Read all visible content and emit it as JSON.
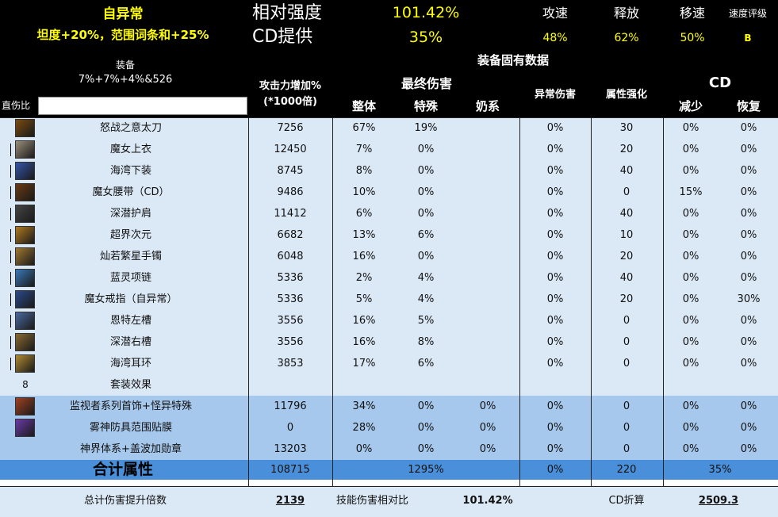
{
  "header": {
    "title_left": "自异常",
    "subtitle_left": "坦度+20%，范围词条和+25%",
    "relative_strength_label": "相对强度",
    "relative_strength_value": "101.42%",
    "cd_label": "CD提供",
    "cd_value": "35%",
    "speed_headers": [
      "攻速",
      "释放",
      "移速",
      "速度评级"
    ],
    "speed_values": [
      "48%",
      "62%",
      "50%",
      "B"
    ],
    "equip_label": "装备",
    "equip_value": "7%+7%+4%&526",
    "fixed_data_label": "装备固有数据",
    "direct_ratio_label": "直伤比",
    "direct_ratio_input": "",
    "atk_label_1": "攻击力增加%",
    "atk_label_2": "(*1000倍)",
    "final_dmg_label": "最终伤害",
    "sub_total": "整体",
    "sub_special": "特殊",
    "sub_milk": "奶系",
    "abnormal_label": "异常伤害",
    "element_label": "属性强化",
    "cd_group_label": "CD",
    "cd_reduce": "减少",
    "cd_recover": "恢复"
  },
  "items": [
    {
      "name": "怒战之意太刀",
      "atk": "7256",
      "total": "67%",
      "special": "19%",
      "milk": "",
      "abnormal": "0%",
      "element": "30",
      "cd_reduce": "0%",
      "cd_recover": "0%"
    },
    {
      "name": "魔女上衣",
      "atk": "12450",
      "total": "7%",
      "special": "0%",
      "milk": "",
      "abnormal": "0%",
      "element": "20",
      "cd_reduce": "0%",
      "cd_recover": "0%"
    },
    {
      "name": "海湾下装",
      "atk": "8745",
      "total": "8%",
      "special": "0%",
      "milk": "",
      "abnormal": "0%",
      "element": "40",
      "cd_reduce": "0%",
      "cd_recover": "0%"
    },
    {
      "name": "魔女腰带（CD）",
      "atk": "9486",
      "total": "10%",
      "special": "0%",
      "milk": "",
      "abnormal": "0%",
      "element": "0",
      "cd_reduce": "15%",
      "cd_recover": "0%"
    },
    {
      "name": "深潜护肩",
      "atk": "11412",
      "total": "6%",
      "special": "0%",
      "milk": "",
      "abnormal": "0%",
      "element": "40",
      "cd_reduce": "0%",
      "cd_recover": "0%"
    },
    {
      "name": "超界次元",
      "atk": "6682",
      "total": "13%",
      "special": "6%",
      "milk": "",
      "abnormal": "0%",
      "element": "10",
      "cd_reduce": "0%",
      "cd_recover": "0%"
    },
    {
      "name": "灿若繁星手镯",
      "atk": "6048",
      "total": "16%",
      "special": "0%",
      "milk": "",
      "abnormal": "0%",
      "element": "20",
      "cd_reduce": "0%",
      "cd_recover": "0%"
    },
    {
      "name": "蓝灵项链",
      "atk": "5336",
      "total": "2%",
      "special": "4%",
      "milk": "",
      "abnormal": "0%",
      "element": "40",
      "cd_reduce": "0%",
      "cd_recover": "0%"
    },
    {
      "name": "魔女戒指（自异常）",
      "atk": "5336",
      "total": "5%",
      "special": "4%",
      "milk": "",
      "abnormal": "0%",
      "element": "20",
      "cd_reduce": "0%",
      "cd_recover": "30%"
    },
    {
      "name": "恩特左槽",
      "atk": "3556",
      "total": "16%",
      "special": "5%",
      "milk": "",
      "abnormal": "0%",
      "element": "0",
      "cd_reduce": "0%",
      "cd_recover": "0%"
    },
    {
      "name": "深潜右槽",
      "atk": "3556",
      "total": "16%",
      "special": "8%",
      "milk": "",
      "abnormal": "0%",
      "element": "0",
      "cd_reduce": "0%",
      "cd_recover": "0%"
    },
    {
      "name": "海湾耳环",
      "atk": "3853",
      "total": "17%",
      "special": "6%",
      "milk": "",
      "abnormal": "0%",
      "element": "0",
      "cd_reduce": "0%",
      "cd_recover": "0%"
    }
  ],
  "set_effect": {
    "count": "8",
    "label": "套装效果"
  },
  "extras": [
    {
      "name": "监视者系列首饰+怪异特殊",
      "atk": "11796",
      "total": "34%",
      "special": "0%",
      "milk": "0%",
      "abnormal": "0%",
      "element": "0",
      "cd_reduce": "0%",
      "cd_recover": "0%"
    },
    {
      "name": "雾神防具范围贴膜",
      "atk": "0",
      "total": "28%",
      "special": "0%",
      "milk": "0%",
      "abnormal": "0%",
      "element": "0",
      "cd_reduce": "0%",
      "cd_recover": "0%"
    },
    {
      "name": "神界体系+盖波加勋章",
      "atk": "13203",
      "total": "0%",
      "special": "0%",
      "milk": "0%",
      "abnormal": "0%",
      "element": "0",
      "cd_reduce": "0%",
      "cd_recover": "0%"
    }
  ],
  "totals": {
    "label": "合计属性",
    "atk": "108715",
    "final": "1295%",
    "abnormal": "0%",
    "element": "220",
    "cd": "35%"
  },
  "footer": {
    "total_mult_label": "总计伤害提升倍数",
    "total_mult_value": "2139",
    "skill_ratio_label": "技能伤害相对比",
    "skill_ratio_value": "101.42%",
    "cd_conv_label": "CD折算",
    "cd_conv_value": "2509.3"
  },
  "colors": {
    "header_bg": "#000000",
    "yellow": "#ffff00",
    "row_light": "#dbe8f6",
    "row_mid": "#a6c8ec",
    "total_bar": "#4a8fd9"
  }
}
